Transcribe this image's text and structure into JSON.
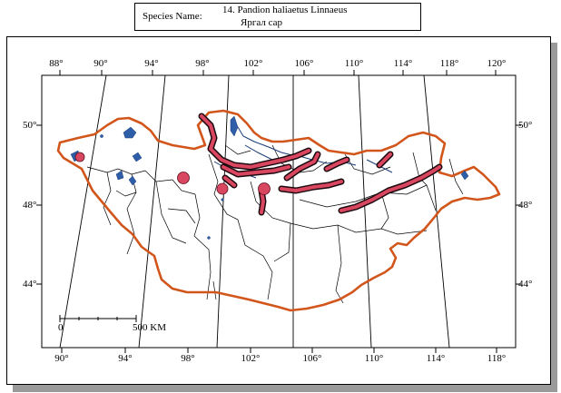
{
  "header": {
    "label": "Species Name:",
    "species": "14. Pandion haliaetus Linnaeus",
    "local_name": "Яргал сар"
  },
  "map": {
    "top_lon_labels": [
      "88°",
      "90°",
      "94°",
      "98°",
      "102°",
      "106°",
      "110°",
      "114°",
      "118°",
      "120°"
    ],
    "bottom_lon_labels": [
      "90°",
      "94°",
      "98°",
      "102°",
      "106°",
      "110°",
      "114°",
      "118°"
    ],
    "left_lat_labels": [
      "50°",
      "48°",
      "44°"
    ],
    "right_lat_labels": [
      "50°",
      "48°",
      "44°"
    ],
    "scale_start": "0",
    "scale_end": "500 KM"
  },
  "colors": {
    "border": "#d2561b",
    "range": "#d9465f",
    "water": "#2e5ea8"
  }
}
